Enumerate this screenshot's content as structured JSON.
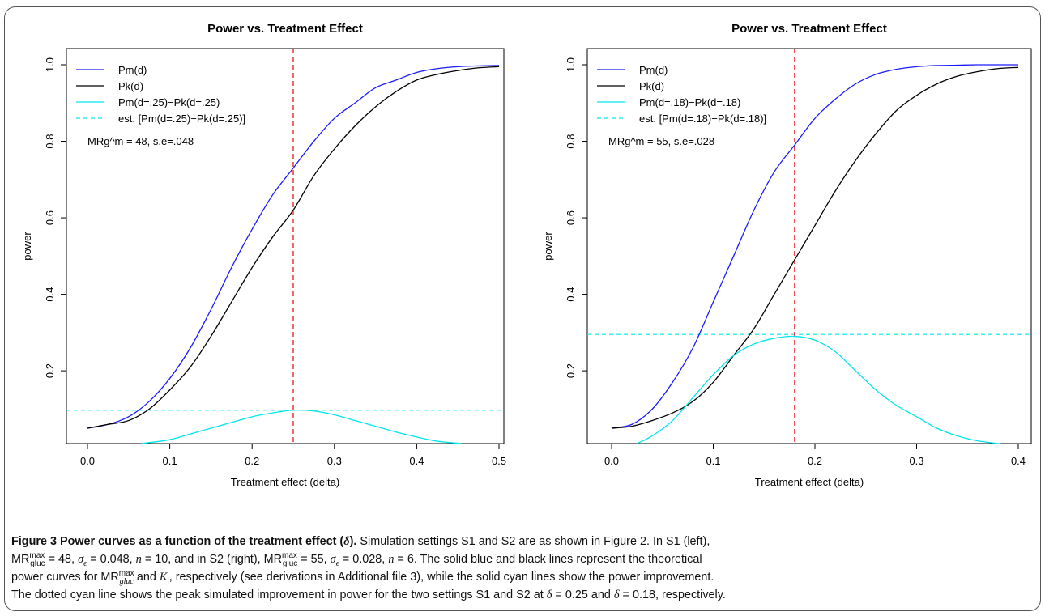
{
  "colors": {
    "pm": "#1a1aff",
    "pk": "#000000",
    "diff": "#00e5ee",
    "est": "#00e5ee",
    "vline": "#e8282b"
  },
  "chart_data": [
    {
      "type": "line",
      "title": "Power vs. Treatment Effect",
      "xlabel": "Treatment effect (delta)",
      "ylabel": "power",
      "xlim": [
        0.0,
        0.5
      ],
      "ylim": [
        0.05,
        1.0
      ],
      "xticks": [
        "0.0",
        "0.1",
        "0.2",
        "0.3",
        "0.4",
        "0.5"
      ],
      "yticks": [
        "0.2",
        "0.4",
        "0.6",
        "0.8",
        "1.0"
      ],
      "vline_x": 0.25,
      "hline_y": 0.097,
      "annotation": "MRg^m = 48, s.e=.048",
      "legend": [
        "Pm(d)",
        "Pk(d)",
        "Pm(d=.25)−Pk(d=.25)",
        "est. [Pm(d=.25)−Pk(d=.25)]"
      ],
      "legend_position": "top-left",
      "series": [
        {
          "name": "Pm(d)",
          "x": [
            0.0,
            0.025,
            0.05,
            0.075,
            0.1,
            0.125,
            0.15,
            0.175,
            0.2,
            0.225,
            0.25,
            0.275,
            0.3,
            0.325,
            0.35,
            0.375,
            0.4,
            0.425,
            0.45,
            0.475,
            0.5
          ],
          "values": [
            0.05,
            0.06,
            0.08,
            0.12,
            0.18,
            0.26,
            0.36,
            0.47,
            0.57,
            0.66,
            0.73,
            0.8,
            0.86,
            0.9,
            0.94,
            0.96,
            0.98,
            0.99,
            0.995,
            0.997,
            0.998
          ]
        },
        {
          "name": "Pk(d)",
          "x": [
            0.0,
            0.025,
            0.05,
            0.075,
            0.1,
            0.125,
            0.15,
            0.175,
            0.2,
            0.225,
            0.25,
            0.275,
            0.3,
            0.325,
            0.35,
            0.375,
            0.4,
            0.425,
            0.45,
            0.475,
            0.5
          ],
          "values": [
            0.05,
            0.06,
            0.07,
            0.1,
            0.15,
            0.21,
            0.29,
            0.38,
            0.47,
            0.55,
            0.62,
            0.71,
            0.78,
            0.84,
            0.89,
            0.93,
            0.96,
            0.975,
            0.985,
            0.992,
            0.995
          ]
        },
        {
          "name": "Pm(d=.25)−Pk(d=.25)",
          "x": [
            0.066,
            0.1,
            0.125,
            0.15,
            0.175,
            0.2,
            0.225,
            0.25,
            0.275,
            0.3,
            0.325,
            0.35,
            0.375,
            0.4,
            0.425,
            0.454
          ],
          "values": [
            0.01,
            0.02,
            0.035,
            0.05,
            0.065,
            0.08,
            0.09,
            0.097,
            0.095,
            0.085,
            0.07,
            0.055,
            0.04,
            0.027,
            0.016,
            0.01
          ]
        }
      ]
    },
    {
      "type": "line",
      "title": "Power vs. Treatment Effect",
      "xlabel": "Treatment effect (delta)",
      "ylabel": "power",
      "xlim": [
        0.0,
        0.4
      ],
      "ylim": [
        0.05,
        1.0
      ],
      "xticks": [
        "0.0",
        "0.1",
        "0.2",
        "0.3",
        "0.4"
      ],
      "yticks": [
        "0.2",
        "0.4",
        "0.6",
        "0.8",
        "1.0"
      ],
      "vline_x": 0.18,
      "hline_y": 0.295,
      "annotation": "MRg^m = 55, s.e=.028",
      "legend": [
        "Pm(d)",
        "Pk(d)",
        "Pm(d=.18)−Pk(d=.18)",
        "est. [Pm(d=.18)−Pk(d=.18)]"
      ],
      "legend_position": "top-left",
      "series": [
        {
          "name": "Pm(d)",
          "x": [
            0.0,
            0.02,
            0.04,
            0.06,
            0.08,
            0.1,
            0.12,
            0.14,
            0.16,
            0.18,
            0.2,
            0.22,
            0.24,
            0.26,
            0.28,
            0.3,
            0.32,
            0.34,
            0.36,
            0.38,
            0.4
          ],
          "values": [
            0.05,
            0.06,
            0.1,
            0.17,
            0.26,
            0.38,
            0.5,
            0.62,
            0.72,
            0.79,
            0.86,
            0.91,
            0.95,
            0.975,
            0.988,
            0.995,
            0.998,
            0.999,
            1.0,
            1.0,
            1.0
          ]
        },
        {
          "name": "Pk(d)",
          "x": [
            0.0,
            0.02,
            0.04,
            0.06,
            0.08,
            0.1,
            0.12,
            0.14,
            0.16,
            0.18,
            0.2,
            0.22,
            0.24,
            0.26,
            0.28,
            0.3,
            0.32,
            0.34,
            0.36,
            0.38,
            0.4
          ],
          "values": [
            0.05,
            0.055,
            0.07,
            0.09,
            0.12,
            0.17,
            0.24,
            0.31,
            0.4,
            0.49,
            0.58,
            0.67,
            0.75,
            0.82,
            0.88,
            0.92,
            0.95,
            0.97,
            0.982,
            0.99,
            0.993
          ]
        },
        {
          "name": "Pm(d=.18)−Pk(d=.18)",
          "x": [
            0.025,
            0.04,
            0.06,
            0.08,
            0.1,
            0.12,
            0.14,
            0.16,
            0.18,
            0.2,
            0.22,
            0.24,
            0.26,
            0.28,
            0.3,
            0.32,
            0.34,
            0.36,
            0.38,
            0.39
          ],
          "values": [
            0.01,
            0.03,
            0.07,
            0.13,
            0.19,
            0.24,
            0.27,
            0.285,
            0.29,
            0.28,
            0.25,
            0.2,
            0.15,
            0.11,
            0.08,
            0.05,
            0.03,
            0.017,
            0.01,
            0.005
          ]
        }
      ]
    }
  ],
  "caption": {
    "label": "Figure 3 Power curves as a function of the treatment effect (",
    "delta": "δ",
    "label_end": ").",
    "line1_rest": " Simulation settings S1 and S2 are as shown in Figure 2. In S1 (left),",
    "line2": "MR, = 48, σ = 0.048, n = 10, and in S2 (right), MR = 55, σ = 0.028, n = 6. The solid blue and black lines represent the theoretical",
    "line3": "power curves for MR and K, respectively (see derivations in Additional file 3), while the solid cyan lines show the power improvement.",
    "line4": "The dotted cyan line shows the peak simulated improvement in power for the two settings S1 and S2 at δ = 0.25 and δ = 0.18, respectively."
  }
}
